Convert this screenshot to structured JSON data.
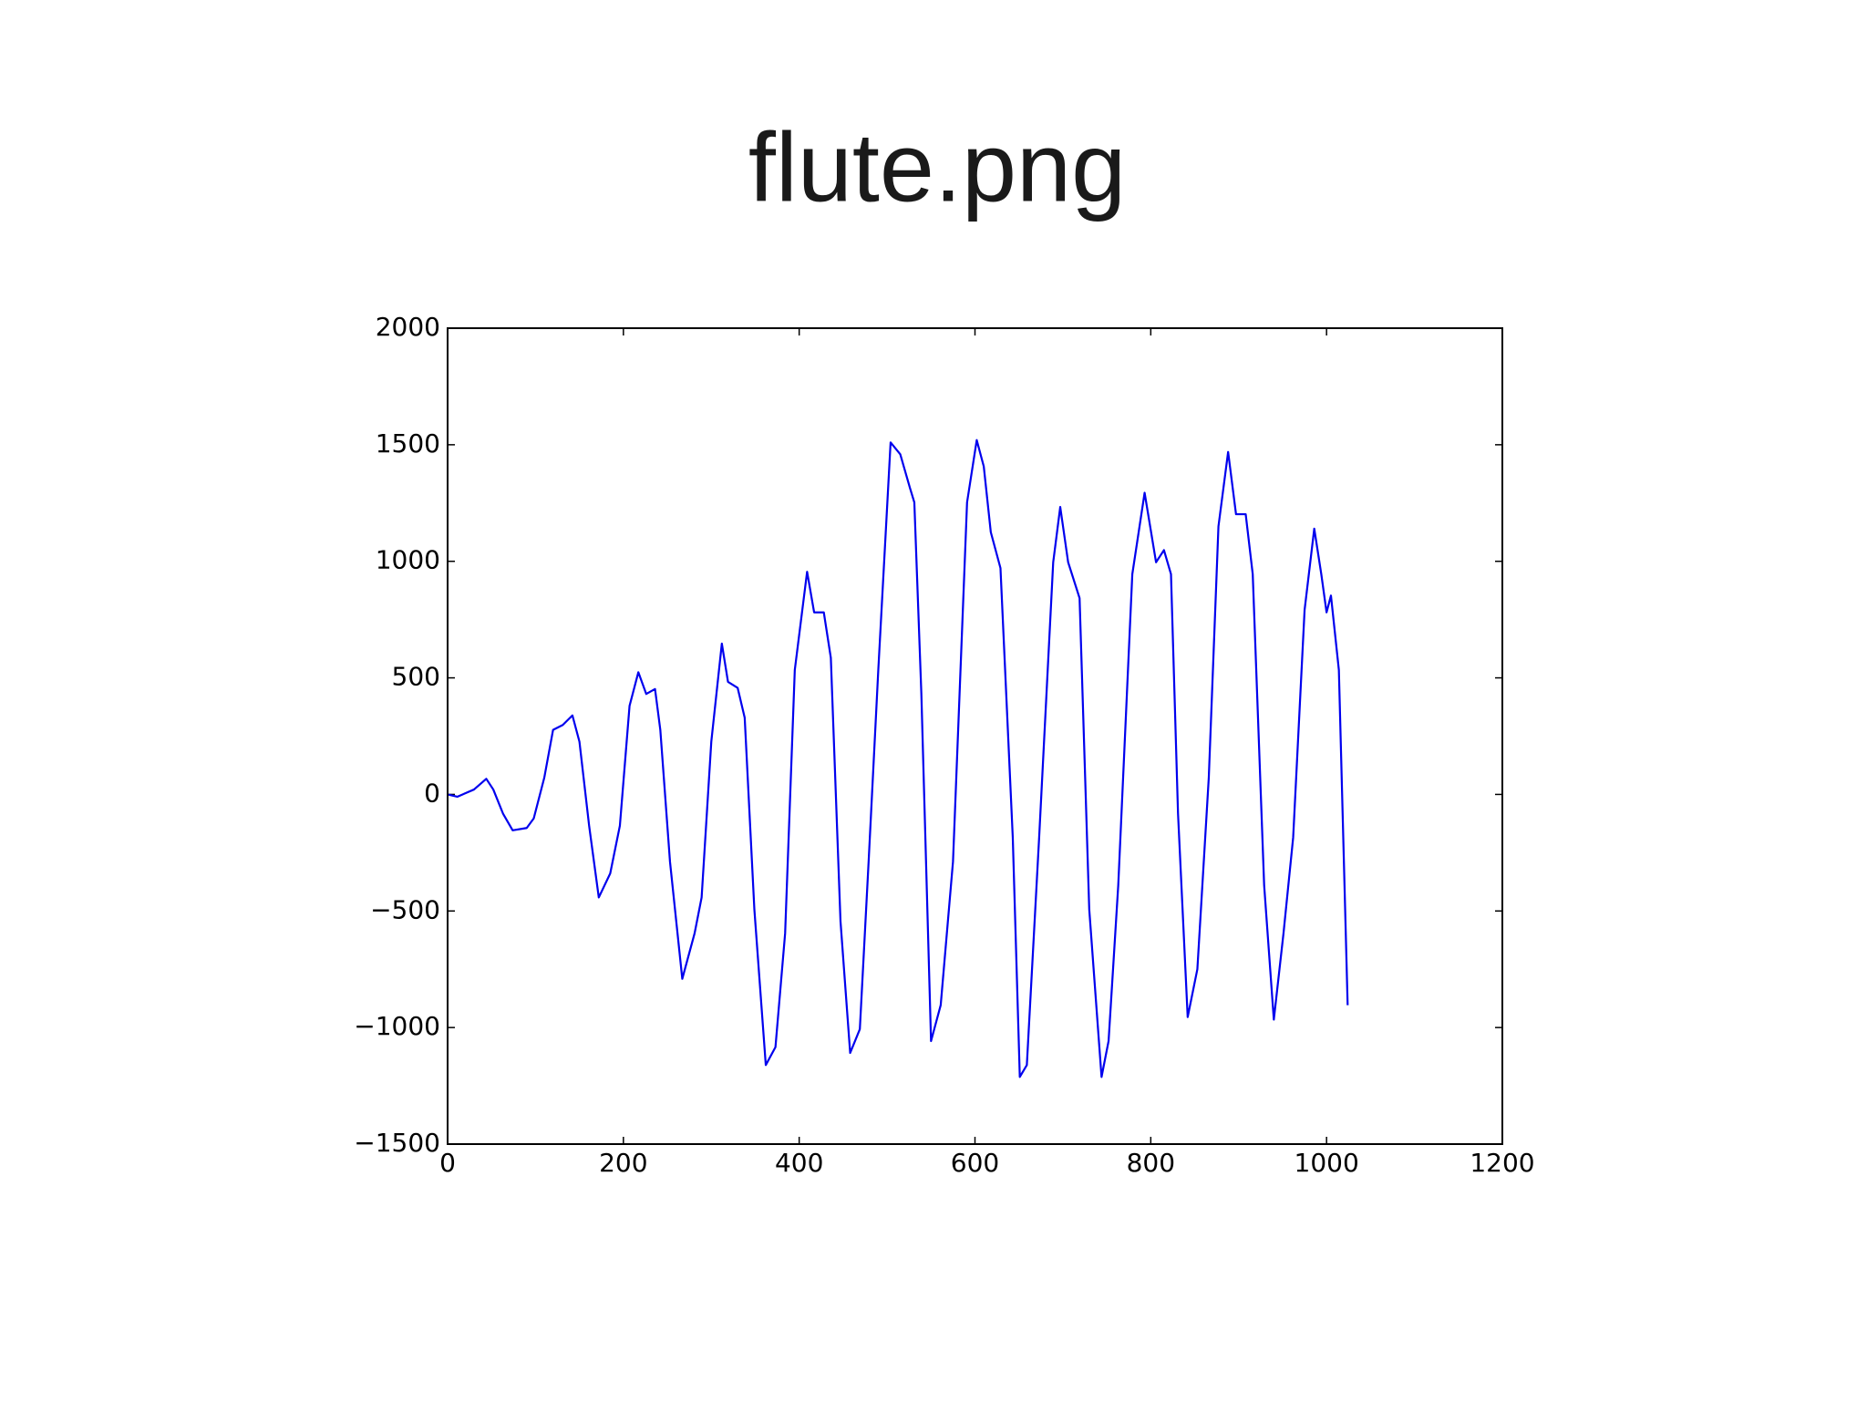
{
  "chart_data": {
    "type": "line",
    "title": "flute.png",
    "x": [
      0,
      11,
      30,
      44,
      52,
      63,
      74,
      90,
      98,
      110,
      120,
      131,
      142,
      150,
      161,
      172,
      185,
      196,
      207,
      217,
      226,
      236,
      242,
      253,
      267,
      281,
      289,
      300,
      312,
      319,
      330,
      338,
      349,
      362,
      373,
      384,
      395,
      409,
      417,
      428,
      436,
      447,
      458,
      469,
      479,
      490,
      504,
      515,
      526,
      531,
      539,
      550,
      561,
      575,
      591,
      602,
      610,
      618,
      629,
      643,
      651,
      659,
      673,
      689,
      697,
      706,
      719,
      730,
      744,
      752,
      763,
      779,
      793,
      806,
      815,
      823,
      831,
      842,
      853,
      866,
      877,
      888,
      897,
      908,
      916,
      929,
      940,
      951,
      962,
      975,
      986,
      994,
      1000,
      1005,
      1014,
      1024
    ],
    "series": [
      {
        "name": "flute",
        "color": "#0000ee",
        "values": [
          0,
          -10,
          21,
          67,
          21,
          -82,
          -154,
          -144,
          -103,
          72,
          277,
          298,
          339,
          226,
          -134,
          -442,
          -339,
          -134,
          380,
          524,
          431,
          452,
          277,
          -288,
          -791,
          -596,
          -442,
          226,
          647,
          483,
          457,
          329,
          -493,
          -1161,
          -1084,
          -596,
          534,
          955,
          781,
          781,
          586,
          -544,
          -1109,
          -1007,
          -288,
          534,
          1510,
          1459,
          1315,
          1253,
          431,
          -1058,
          -904,
          -288,
          1253,
          1520,
          1407,
          1125,
          971,
          -185,
          -1212,
          -1161,
          -185,
          996,
          1233,
          996,
          842,
          -493,
          -1212,
          -1058,
          -390,
          945,
          1294,
          996,
          1048,
          945,
          -82,
          -955,
          -750,
          72,
          1150,
          1469,
          1202,
          1202,
          945,
          -390,
          -966,
          -596,
          -185,
          791,
          1140,
          945,
          781,
          853,
          534,
          -904
        ]
      }
    ],
    "xlim": [
      0,
      1200
    ],
    "xticks": [
      0,
      200,
      400,
      600,
      800,
      1000,
      1200
    ],
    "ylim": [
      -1500,
      2000
    ],
    "yticks": [
      {
        "value": -1500,
        "label": "−1500"
      },
      {
        "value": -1000,
        "label": "−1000"
      },
      {
        "value": -500,
        "label": "−500"
      },
      0,
      500,
      1000,
      1500,
      2000
    ]
  }
}
